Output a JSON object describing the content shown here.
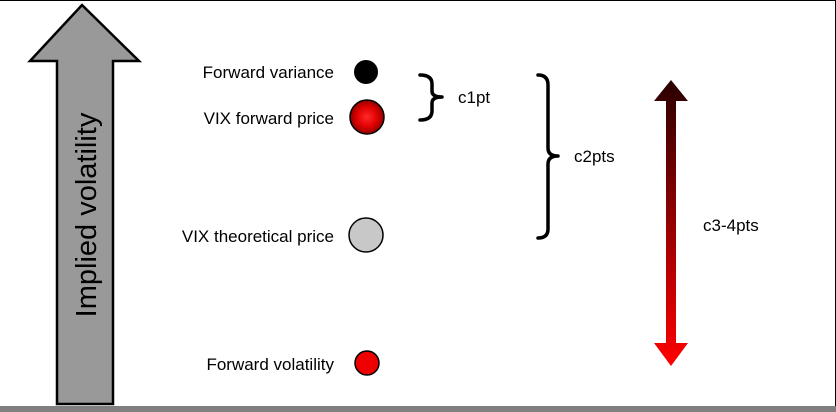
{
  "axis": {
    "label": "Implied volatility"
  },
  "points": [
    {
      "label": "Forward variance",
      "color": "#000000",
      "kind": "black"
    },
    {
      "label": "VIX forward price",
      "color": "#e00000",
      "kind": "red-glow"
    },
    {
      "label": "VIX theoretical price",
      "color": "#c8c8c8",
      "kind": "gray"
    },
    {
      "label": "Forward volatility",
      "color": "#ee0000",
      "kind": "red"
    }
  ],
  "brackets": [
    {
      "label": "c1pt"
    },
    {
      "label": "c2pts"
    }
  ],
  "range_arrow": {
    "label": "c3-4pts",
    "color_top": "#2a0000",
    "color_bottom": "#ff0000"
  }
}
